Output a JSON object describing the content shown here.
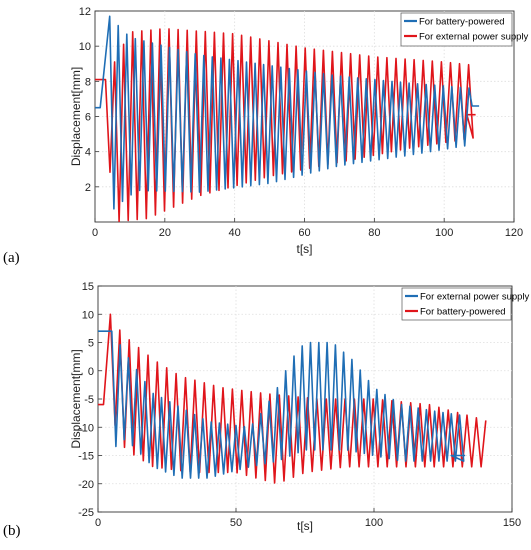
{
  "chart_data": [
    {
      "panel_label": "(a)",
      "type": "line",
      "xlabel": "t[s]",
      "ylabel": "Displacement[mm]",
      "xlim": [
        0,
        120
      ],
      "ylim": [
        0,
        12
      ],
      "xticks": [
        "0",
        "20",
        "40",
        "60",
        "80",
        "100",
        "120"
      ],
      "yticks": [
        "2",
        "4",
        "6",
        "8",
        "10",
        "12"
      ],
      "grid": true,
      "legend_position": "top-right",
      "series": [
        {
          "name": "For battery-powered",
          "color": "#1f6eb5",
          "pre_hold": {
            "x": [
              0,
              1.5
            ],
            "y": 6.5
          },
          "peak": {
            "t": 4.2,
            "value": 11.7
          },
          "oscillation": {
            "t_start": 3.5,
            "t_end": 108,
            "period": 2.45,
            "upper_envelope": [
              [
                4,
                11.7
              ],
              [
                10,
                10.5
              ],
              [
                30,
                9.5
              ],
              [
                50,
                8.9
              ],
              [
                70,
                8.3
              ],
              [
                90,
                7.9
              ],
              [
                108,
                7.6
              ]
            ],
            "lower_envelope": [
              [
                4,
                0.5
              ],
              [
                8,
                1.2
              ],
              [
                12,
                1.8
              ],
              [
                30,
                1.7
              ],
              [
                50,
                2.2
              ],
              [
                70,
                3.2
              ],
              [
                90,
                3.8
              ],
              [
                108,
                4.4
              ]
            ]
          },
          "post_hold": {
            "x": [
              108,
              110
            ],
            "y": 6.6
          }
        },
        {
          "name": "For external power supply",
          "color": "#e0151b",
          "pre_hold": {
            "x": [
              0,
              2.5
            ],
            "y": 8.1
          },
          "oscillation": {
            "t_start": 3,
            "t_end": 109,
            "period": 2.6,
            "upper_envelope": [
              [
                3,
                8.1
              ],
              [
                10,
                10.8
              ],
              [
                20,
                11.0
              ],
              [
                40,
                10.7
              ],
              [
                60,
                9.9
              ],
              [
                80,
                9.4
              ],
              [
                100,
                9.1
              ],
              [
                109,
                8.9
              ]
            ],
            "lower_envelope": [
              [
                3,
                8.1
              ],
              [
                5,
                0.0
              ],
              [
                15,
                0.2
              ],
              [
                30,
                1.5
              ],
              [
                50,
                2.6
              ],
              [
                70,
                3.4
              ],
              [
                90,
                4.2
              ],
              [
                109,
                4.8
              ]
            ]
          },
          "post_hold": {
            "x": [
              106.5,
              109
            ],
            "y": 6.1
          }
        }
      ]
    },
    {
      "panel_label": "(b)",
      "type": "line",
      "xlabel": "t[s]",
      "ylabel": "Displacement[mm]",
      "xlim": [
        0,
        150
      ],
      "ylim": [
        -25,
        15
      ],
      "xticks": [
        "0",
        "50",
        "100",
        "150"
      ],
      "yticks": [
        "-25",
        "-20",
        "-15",
        "-10",
        "-5",
        "0",
        "5",
        "10",
        "15"
      ],
      "grid": true,
      "legend_position": "top-right",
      "series": [
        {
          "name": "For external power supply",
          "color": "#1f6eb5",
          "pre_hold": {
            "x": [
              0,
              5
            ],
            "y": 7
          },
          "oscillation": {
            "t_start": 5,
            "t_end": 133,
            "period": 3.0,
            "upper_envelope": [
              [
                5,
                7
              ],
              [
                10,
                3
              ],
              [
                20,
                -4
              ],
              [
                40,
                -9
              ],
              [
                55,
                -10
              ],
              [
                60,
                -7
              ],
              [
                65,
                -3
              ],
              [
                70,
                2
              ],
              [
                75,
                5
              ],
              [
                85,
                5
              ],
              [
                92,
                2
              ],
              [
                100,
                -3
              ],
              [
                110,
                -6
              ],
              [
                120,
                -7
              ],
              [
                133,
                -8
              ]
            ],
            "lower_envelope": [
              [
                5,
                -14
              ],
              [
                10,
                -12
              ],
              [
                20,
                -17
              ],
              [
                30,
                -19
              ],
              [
                40,
                -19
              ],
              [
                55,
                -17
              ],
              [
                65,
                -16
              ],
              [
                75,
                -14
              ],
              [
                90,
                -14
              ],
              [
                100,
                -15
              ],
              [
                110,
                -16
              ],
              [
                120,
                -16
              ],
              [
                133,
                -16
              ]
            ]
          },
          "post_hold": {
            "x": [
              128,
              133
            ],
            "y": -15
          }
        },
        {
          "name": "For battery-powered",
          "color": "#e0151b",
          "pre_hold": {
            "x": [
              0,
              2
            ],
            "y": -6
          },
          "peak": {
            "t": 4.5,
            "value": 10
          },
          "oscillation": {
            "t_start": 2.5,
            "t_end": 142,
            "period": 3.4,
            "upper_envelope": [
              [
                3,
                10
              ],
              [
                10,
                6
              ],
              [
                20,
                2
              ],
              [
                30,
                -1
              ],
              [
                45,
                -3
              ],
              [
                60,
                -4
              ],
              [
                80,
                -5
              ],
              [
                100,
                -5
              ],
              [
                120,
                -6
              ],
              [
                142,
                -9
              ]
            ],
            "lower_envelope": [
              [
                3,
                -6
              ],
              [
                10,
                -14
              ],
              [
                20,
                -17
              ],
              [
                35,
                -18
              ],
              [
                50,
                -18
              ],
              [
                65,
                -20
              ],
              [
                75,
                -18
              ],
              [
                90,
                -17
              ],
              [
                110,
                -17
              ],
              [
                130,
                -17
              ],
              [
                142,
                -17
              ]
            ]
          }
        }
      ]
    }
  ]
}
